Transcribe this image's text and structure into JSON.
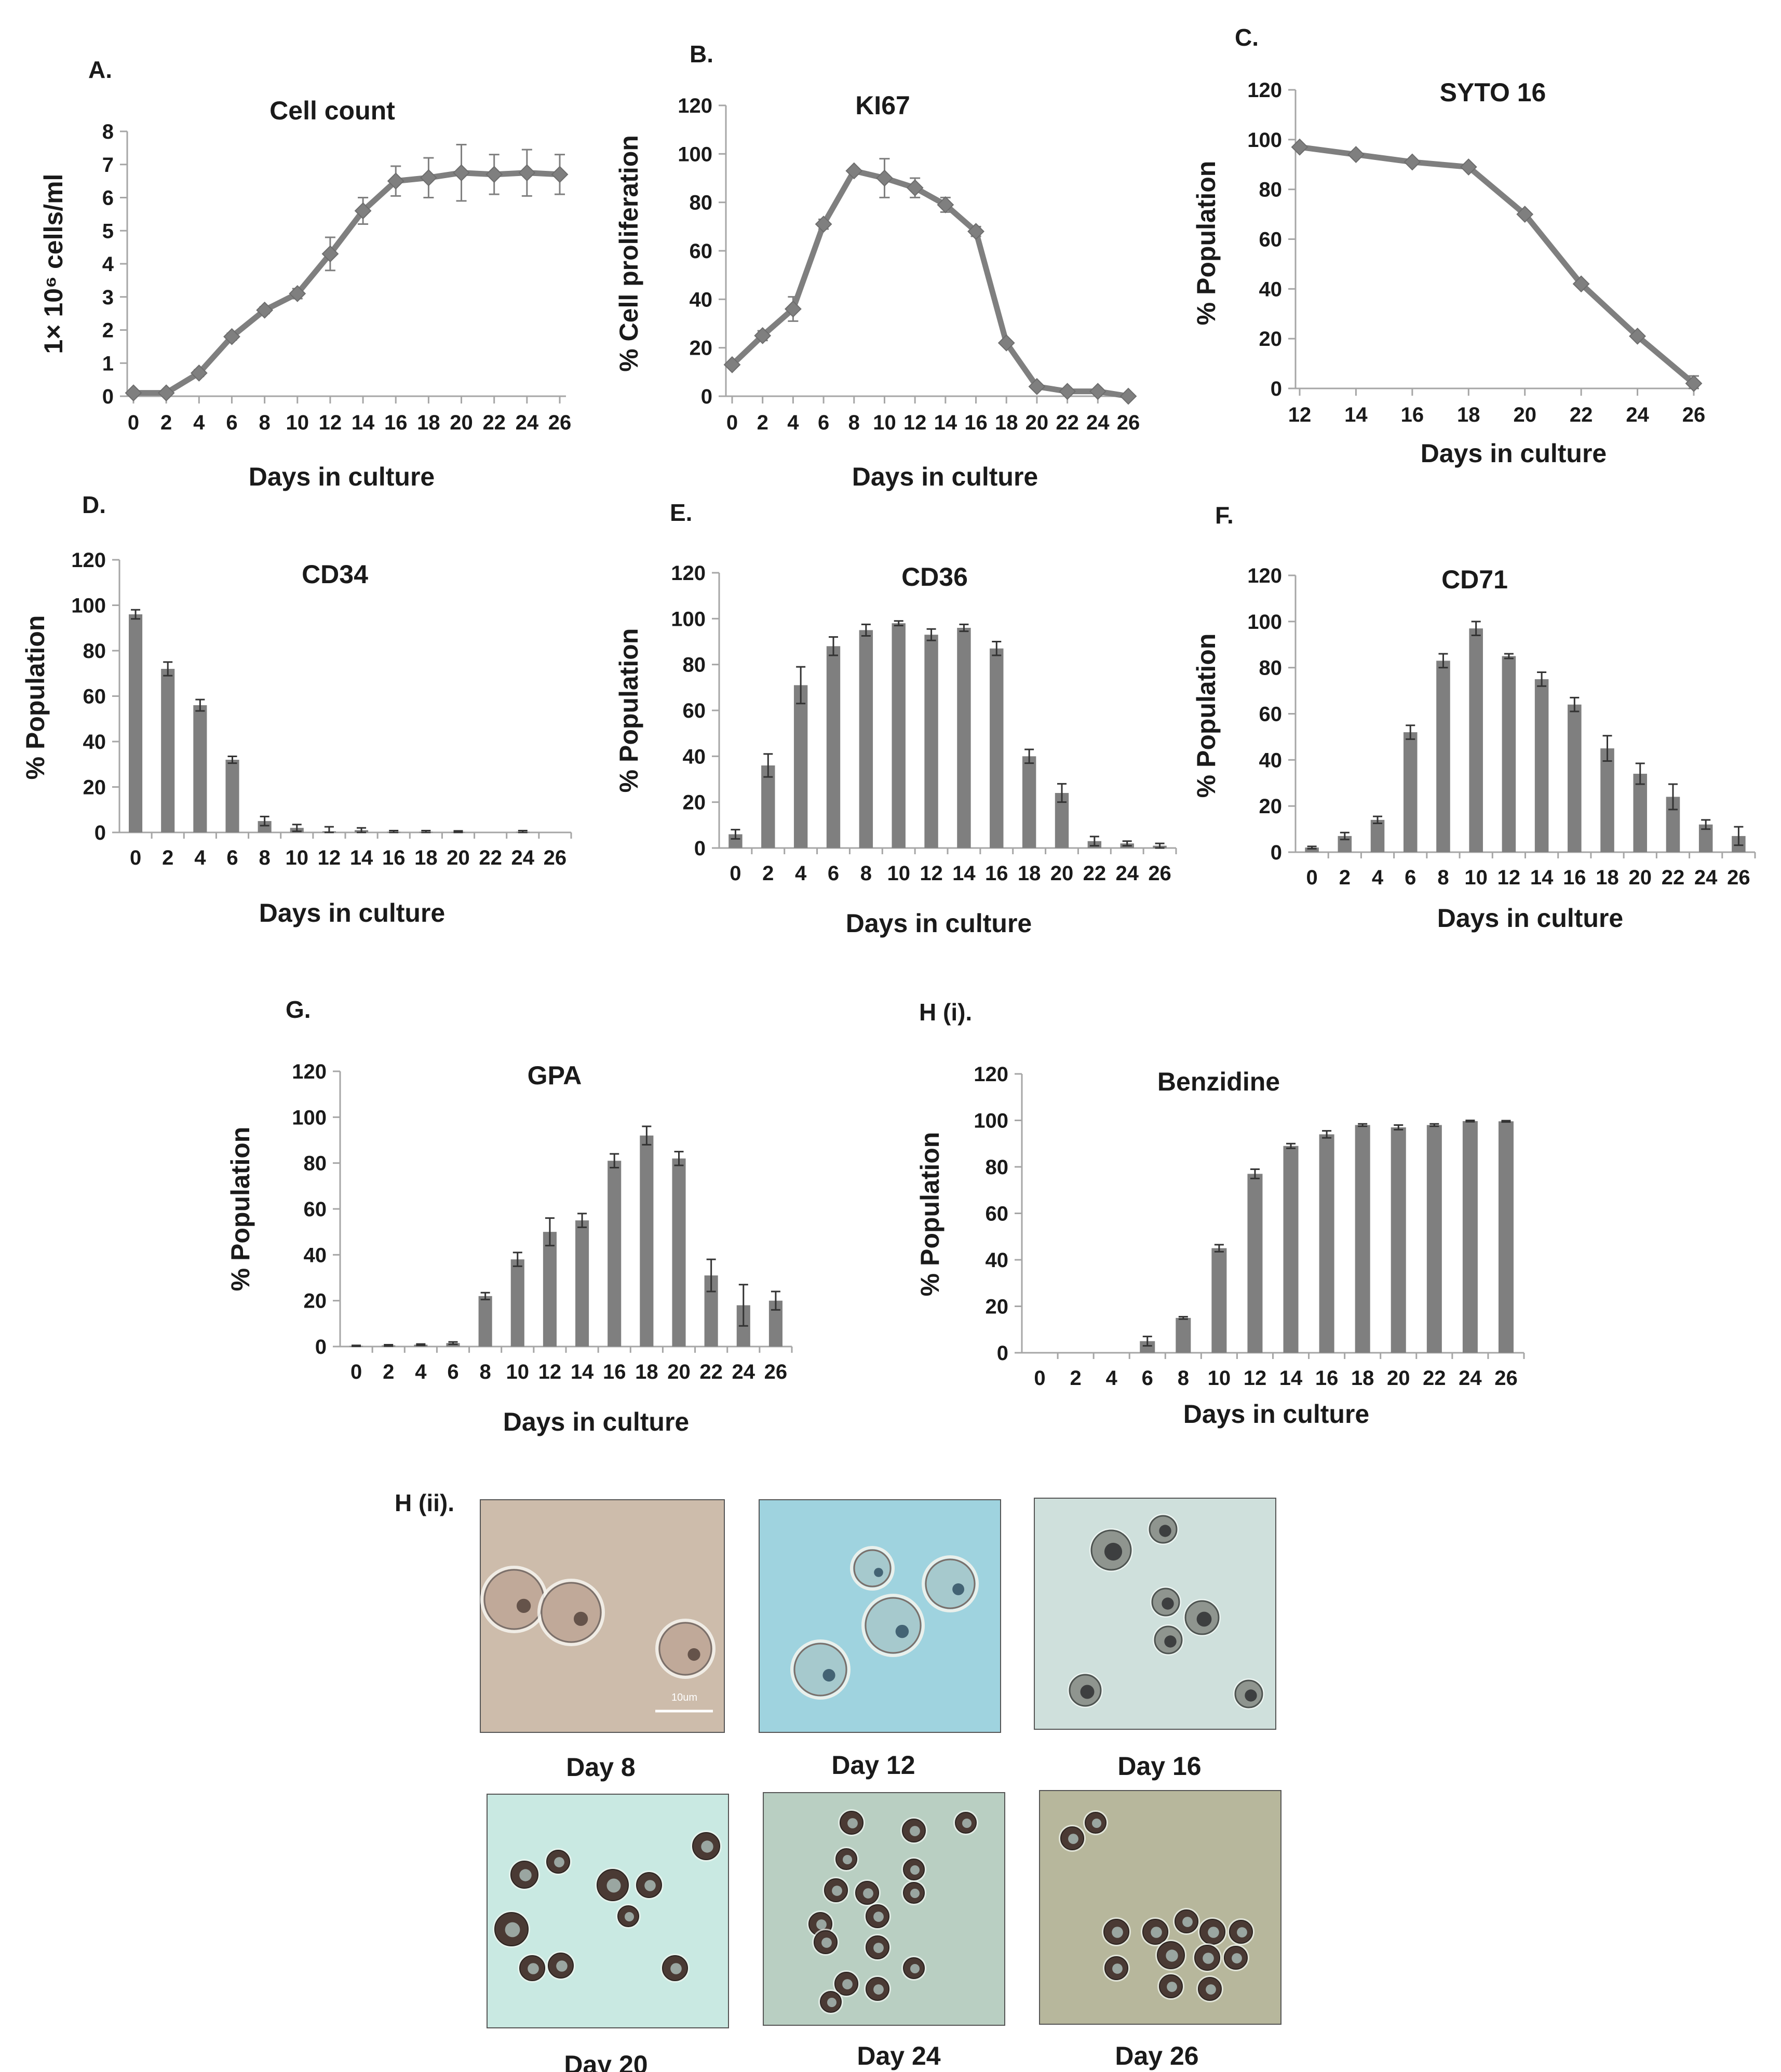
{
  "colors": {
    "series": "#7f7f7f",
    "axis": "#a6a6a6",
    "text": "#1a1a1a",
    "error": "#333333"
  },
  "chart_data": [
    {
      "id": "A",
      "panel_label": "A.",
      "type": "line",
      "title": "Cell count",
      "ylabel": "1× 10⁶ cells/ml",
      "xlabel": "Days in culture",
      "x": [
        0,
        2,
        4,
        6,
        8,
        10,
        12,
        14,
        16,
        18,
        20,
        22,
        24,
        26
      ],
      "values": [
        0.1,
        0.1,
        0.7,
        1.8,
        2.6,
        3.1,
        4.3,
        5.6,
        6.5,
        6.6,
        6.75,
        6.7,
        6.75,
        6.7
      ],
      "errors": [
        0.05,
        0.05,
        0.1,
        0.1,
        0.1,
        0.15,
        0.5,
        0.4,
        0.45,
        0.6,
        0.85,
        0.6,
        0.7,
        0.6
      ],
      "ylim": [
        0,
        8
      ],
      "yticks": [
        0,
        1,
        2,
        3,
        4,
        5,
        6,
        7,
        8
      ],
      "marker": "diamond",
      "grid": false
    },
    {
      "id": "B",
      "panel_label": "B.",
      "type": "line",
      "title": "KI67",
      "ylabel": "% Cell proliferation",
      "xlabel": "Days in culture",
      "x": [
        0,
        2,
        4,
        6,
        8,
        10,
        12,
        14,
        16,
        18,
        20,
        22,
        24,
        26
      ],
      "values": [
        13,
        25,
        36,
        71,
        93,
        90,
        86,
        79,
        68,
        22,
        4,
        2,
        2,
        0
      ],
      "errors": [
        1,
        2,
        5,
        2,
        1,
        8,
        4,
        3,
        2,
        1,
        1,
        1,
        1,
        0
      ],
      "ylim": [
        0,
        120
      ],
      "yticks": [
        0,
        20,
        40,
        60,
        80,
        100,
        120
      ],
      "marker": "diamond",
      "grid": false
    },
    {
      "id": "C",
      "panel_label": "C.",
      "type": "line",
      "title": "SYTO 16",
      "ylabel": "% Population",
      "xlabel": "Days in culture",
      "x": [
        12,
        14,
        16,
        18,
        20,
        22,
        24,
        26
      ],
      "values": [
        97,
        94,
        91,
        89,
        70,
        42,
        21,
        2
      ],
      "errors": [
        0,
        0,
        0,
        0,
        0,
        0,
        0,
        3
      ],
      "ylim": [
        0,
        120
      ],
      "yticks": [
        0,
        20,
        40,
        60,
        80,
        100,
        120
      ],
      "marker": "diamond",
      "grid": false
    },
    {
      "id": "D",
      "panel_label": "D.",
      "type": "bar",
      "title": "CD34",
      "ylabel": "% Population",
      "xlabel": "Days in culture",
      "categories": [
        "0",
        "2",
        "4",
        "6",
        "8",
        "10",
        "12",
        "14",
        "16",
        "18",
        "20",
        "22",
        "24",
        "26"
      ],
      "values": [
        96,
        72,
        56,
        32,
        5,
        2,
        0.5,
        1,
        0.3,
        0.3,
        0.2,
        0,
        0.3,
        0
      ],
      "errors": [
        2,
        3,
        2.5,
        1.5,
        2,
        1.5,
        2,
        1,
        0.5,
        0.5,
        0.5,
        0,
        0.5,
        0
      ],
      "ylim": [
        0,
        120
      ],
      "yticks": [
        0,
        20,
        40,
        60,
        80,
        100,
        120
      ],
      "grid": false
    },
    {
      "id": "E",
      "panel_label": "E.",
      "type": "bar",
      "title": "CD36",
      "ylabel": "% Population",
      "xlabel": "Days in culture",
      "categories": [
        "0",
        "2",
        "4",
        "6",
        "8",
        "10",
        "12",
        "14",
        "16",
        "18",
        "20",
        "22",
        "24",
        "26"
      ],
      "values": [
        6,
        36,
        71,
        88,
        95,
        98,
        93,
        96,
        87,
        40,
        24,
        3,
        2,
        1
      ],
      "errors": [
        2,
        5,
        8,
        4,
        2.5,
        1,
        2.5,
        1.5,
        3,
        3,
        4,
        2,
        1,
        1
      ],
      "ylim": [
        0,
        120
      ],
      "yticks": [
        0,
        20,
        40,
        60,
        80,
        100,
        120
      ],
      "grid": false
    },
    {
      "id": "F",
      "panel_label": "F.",
      "type": "bar",
      "title": "CD71",
      "ylabel": "% Population",
      "xlabel": "Days in culture",
      "categories": [
        "0",
        "2",
        "4",
        "6",
        "8",
        "10",
        "12",
        "14",
        "16",
        "18",
        "20",
        "22",
        "24",
        "26"
      ],
      "values": [
        2,
        7,
        14,
        52,
        83,
        97,
        85,
        75,
        64,
        45,
        34,
        24,
        12,
        7
      ],
      "errors": [
        0.5,
        1.5,
        1.5,
        3,
        3,
        3,
        1,
        3,
        3,
        5.5,
        4.5,
        5.5,
        2,
        4
      ],
      "ylim": [
        0,
        120
      ],
      "yticks": [
        0,
        20,
        40,
        60,
        80,
        100,
        120
      ],
      "grid": false
    },
    {
      "id": "G",
      "panel_label": "G.",
      "type": "bar",
      "title": "GPA",
      "ylabel": "% Population",
      "xlabel": "Days in culture",
      "categories": [
        "0",
        "2",
        "4",
        "6",
        "8",
        "10",
        "12",
        "14",
        "16",
        "18",
        "20",
        "22",
        "24",
        "26"
      ],
      "values": [
        0.3,
        0.5,
        0.8,
        1.5,
        22,
        38,
        50,
        55,
        81,
        92,
        82,
        31,
        18,
        20
      ],
      "errors": [
        0.2,
        0.3,
        0.3,
        0.5,
        1.5,
        3,
        6,
        3,
        3,
        4,
        3,
        7,
        9,
        4
      ],
      "ylim": [
        0,
        120
      ],
      "yticks": [
        0,
        20,
        40,
        60,
        80,
        100,
        120
      ],
      "grid": false
    },
    {
      "id": "Hi",
      "panel_label": "H (i).",
      "type": "bar",
      "title": "Benzidine",
      "ylabel": "% Population",
      "xlabel": "Days in culture",
      "categories": [
        "0",
        "2",
        "4",
        "6",
        "8",
        "10",
        "12",
        "14",
        "16",
        "18",
        "20",
        "22",
        "24",
        "26"
      ],
      "values": [
        0,
        0,
        0,
        5,
        15,
        45,
        77,
        89,
        94,
        98,
        97,
        98,
        99.7,
        99.6
      ],
      "errors": [
        0,
        0,
        0,
        2,
        0.5,
        1.5,
        2,
        1,
        1.5,
        0.5,
        1,
        0.5,
        0.3,
        0.3
      ],
      "ylim": [
        0,
        120
      ],
      "yticks": [
        0,
        20,
        40,
        60,
        80,
        100,
        120
      ],
      "grid": false
    }
  ],
  "micrographs": {
    "panel_label": "H (ii).",
    "scale_bar_label": "10um",
    "images": [
      {
        "caption": "Day 8",
        "background": "#cdbcab"
      },
      {
        "caption": "Day 12",
        "background": "#9fd3df"
      },
      {
        "caption": "Day 16",
        "background": "#cfe0dc"
      },
      {
        "caption": "Day 20",
        "background": "#c9e9e2"
      },
      {
        "caption": "Day 24",
        "background": "#b9cfc2"
      },
      {
        "caption": "Day 26",
        "background": "#b7b79c"
      }
    ]
  }
}
